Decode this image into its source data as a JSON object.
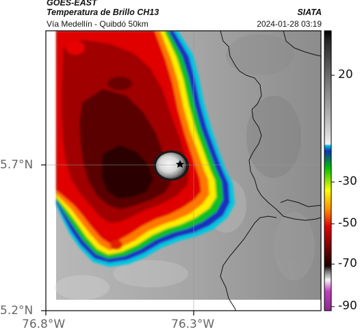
{
  "header": {
    "satellite": "GOES-EAST",
    "product": "Temperatura de Brillo CH13",
    "organization": "SIATA",
    "subtitle": "Vía Medellín - Quibdó 50km",
    "datetime": "2024-01-28 03:19"
  },
  "map": {
    "lat_ticks": [
      "5.7°N",
      "5.2°N"
    ],
    "lon_ticks": [
      "76.8°W",
      "76.3°W"
    ],
    "marker": "location-star",
    "gridlines": true
  },
  "colorbar": {
    "ticks": [
      "20",
      "-30",
      "-50",
      "-70",
      "-90"
    ],
    "palette": {
      "cold_magenta": "#c040c0",
      "white": "#f4f4f4",
      "dark_red": "#4a0000",
      "red": "#e00000",
      "orange": "#ff7a00",
      "yellow": "#ffff00",
      "green": "#00c000",
      "blue": "#1030c0",
      "cyan": "#00c8e0",
      "warm_gray": "#9a9a9a",
      "black": "#000000"
    }
  }
}
